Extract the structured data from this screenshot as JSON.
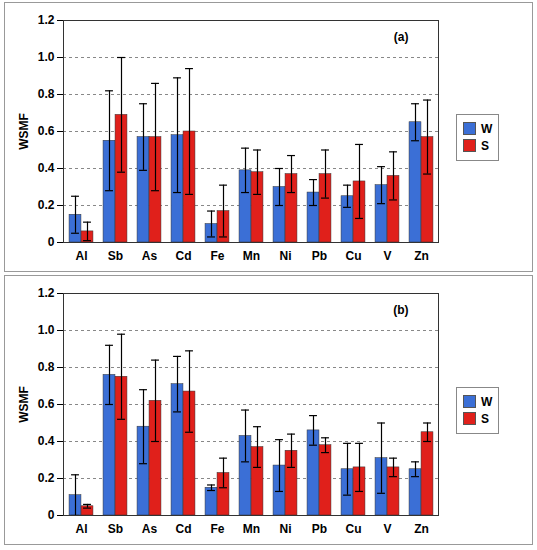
{
  "chart_data": [
    {
      "type": "bar",
      "title": "(a)",
      "y_label": "WSMF",
      "categories": [
        "Al",
        "Sb",
        "As",
        "Cd",
        "Fe",
        "Mn",
        "Ni",
        "Pb",
        "Cu",
        "V",
        "Zn"
      ],
      "series": [
        {
          "name": "W",
          "color": "#3b6fd6",
          "values": [
            0.15,
            0.55,
            0.57,
            0.58,
            0.1,
            0.39,
            0.3,
            0.27,
            0.25,
            0.31,
            0.65
          ],
          "errors": [
            0.1,
            0.27,
            0.18,
            0.31,
            0.07,
            0.12,
            0.1,
            0.07,
            0.06,
            0.1,
            0.1
          ]
        },
        {
          "name": "S",
          "color": "#e0201b",
          "values": [
            0.06,
            0.69,
            0.57,
            0.6,
            0.17,
            0.38,
            0.37,
            0.37,
            0.33,
            0.36,
            0.57
          ],
          "errors": [
            0.05,
            0.31,
            0.29,
            0.34,
            0.14,
            0.12,
            0.1,
            0.13,
            0.2,
            0.13,
            0.2
          ]
        }
      ],
      "ylim": [
        0,
        1.2
      ],
      "yticks": [
        0,
        0.2,
        0.4,
        0.6,
        0.8,
        {
          "value": 1,
          "label": "1.0"
        },
        1.2
      ],
      "grid": true,
      "legend": "right"
    },
    {
      "type": "bar",
      "title": "(b)",
      "y_label": "WSMF",
      "categories": [
        "Al",
        "Sb",
        "As",
        "Cd",
        "Fe",
        "Mn",
        "Ni",
        "Pb",
        "Cu",
        "V",
        "Zn"
      ],
      "series": [
        {
          "name": "W",
          "color": "#3b6fd6",
          "values": [
            0.11,
            0.76,
            0.48,
            0.71,
            0.15,
            0.43,
            0.27,
            0.46,
            0.25,
            0.31,
            0.25
          ],
          "errors": [
            0.11,
            0.16,
            0.2,
            0.15,
            0.015,
            0.14,
            0.14,
            0.08,
            0.14,
            0.19,
            0.04
          ]
        },
        {
          "name": "S",
          "color": "#e0201b",
          "values": [
            0.05,
            0.75,
            0.62,
            0.67,
            0.23,
            0.37,
            0.35,
            0.38,
            0.26,
            0.26,
            0.45
          ],
          "errors": [
            0.01,
            0.23,
            0.22,
            0.22,
            0.08,
            0.11,
            0.09,
            0.04,
            0.13,
            0.05,
            0.05
          ]
        }
      ],
      "ylim": [
        0,
        1.2
      ],
      "yticks": [
        0,
        0.2,
        0.4,
        0.6,
        0.8,
        {
          "value": 1,
          "label": "1.0"
        },
        1.2
      ],
      "grid": true,
      "legend": "right"
    }
  ]
}
